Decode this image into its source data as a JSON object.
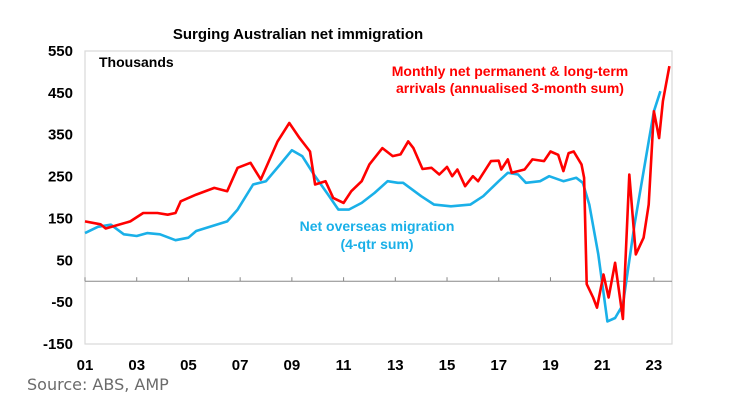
{
  "chart_data": {
    "type": "line",
    "title": "Surging Australian net immigration",
    "ylabel": "Thousands",
    "ylim": [
      -150,
      550
    ],
    "yticks": [
      550,
      450,
      350,
      250,
      150,
      50,
      -50,
      -150
    ],
    "xlim": [
      2001,
      2023.7
    ],
    "xticks": [
      2001,
      2003,
      2005,
      2007,
      2009,
      2011,
      2013,
      2015,
      2017,
      2019,
      2021,
      2023
    ],
    "xtick_labels": [
      "01",
      "03",
      "05",
      "07",
      "09",
      "11",
      "13",
      "15",
      "17",
      "19",
      "21",
      "23"
    ],
    "grid": false,
    "series": [
      {
        "name": "Monthly net permanent & long-term arrivals (annualised 3-month sum)",
        "label_lines": [
          "Monthly net permanent & long-term",
          "arrivals (annualised 3-month sum)"
        ],
        "color": "#ff0000",
        "x": [
          2001.0,
          2001.6,
          2001.8,
          2002.2,
          2002.75,
          2003.25,
          2003.8,
          2004.2,
          2004.5,
          2004.7,
          2005.3,
          2006.0,
          2006.5,
          2006.9,
          2007.4,
          2007.8,
          2008.45,
          2008.9,
          2009.3,
          2009.7,
          2009.9,
          2010.3,
          2010.6,
          2011.0,
          2011.3,
          2011.7,
          2012.0,
          2012.5,
          2012.9,
          2013.2,
          2013.5,
          2013.7,
          2014.05,
          2014.4,
          2014.7,
          2015.0,
          2015.2,
          2015.4,
          2015.7,
          2016.0,
          2016.2,
          2016.7,
          2017.0,
          2017.1,
          2017.35,
          2017.5,
          2018.0,
          2018.3,
          2018.75,
          2019.0,
          2019.3,
          2019.5,
          2019.7,
          2019.9,
          2020.2,
          2020.3,
          2020.4,
          2020.65,
          2020.8,
          2021.05,
          2021.25,
          2021.5,
          2021.8,
          2022.05,
          2022.3,
          2022.6,
          2022.8,
          2023.0,
          2023.2,
          2023.35,
          2023.6
        ],
        "y": [
          143,
          136,
          126,
          133,
          143,
          163,
          163,
          159,
          163,
          191,
          207,
          223,
          215,
          271,
          283,
          243,
          334,
          378,
          342,
          310,
          231,
          239,
          199,
          187,
          215,
          239,
          279,
          318,
          299,
          303,
          334,
          318,
          268,
          271,
          255,
          273,
          251,
          267,
          227,
          251,
          239,
          287,
          288,
          267,
          291,
          259,
          267,
          291,
          287,
          310,
          302,
          263,
          306,
          310,
          279,
          247,
          -7,
          -39,
          -63,
          16,
          -39,
          44,
          -90,
          255,
          64,
          104,
          183,
          406,
          342,
          430,
          514
        ]
      },
      {
        "name": "Net overseas migration (4-qtr sum)",
        "label_lines": [
          "Net overseas migration",
          "(4-qtr sum)"
        ],
        "color": "#1ab0e8",
        "x": [
          2001.0,
          2001.5,
          2002.0,
          2002.5,
          2003.0,
          2003.4,
          2003.9,
          2004.5,
          2005.0,
          2005.3,
          2006.5,
          2006.9,
          2007.5,
          2008.0,
          2008.55,
          2009.0,
          2009.4,
          2009.85,
          2010.4,
          2010.8,
          2011.2,
          2011.7,
          2012.2,
          2012.7,
          2013.1,
          2013.3,
          2014.0,
          2014.5,
          2015.15,
          2015.9,
          2016.4,
          2017.0,
          2017.35,
          2017.75,
          2018.05,
          2018.6,
          2018.95,
          2019.5,
          2020.0,
          2020.25,
          2020.5,
          2020.85,
          2021.2,
          2021.5,
          2021.8,
          2022.25,
          2022.8,
          2023.0,
          2023.25
        ],
        "y": [
          115,
          130,
          135,
          112,
          108,
          115,
          112,
          98,
          104,
          120,
          143,
          171,
          231,
          239,
          279,
          313,
          299,
          255,
          207,
          171,
          171,
          187,
          211,
          239,
          235,
          235,
          203,
          183,
          179,
          183,
          203,
          239,
          259,
          255,
          235,
          239,
          251,
          239,
          247,
          235,
          183,
          64,
          -96,
          -88,
          -56,
          135,
          334,
          406,
          454
        ]
      }
    ]
  },
  "source": "Source: ABS, AMP"
}
